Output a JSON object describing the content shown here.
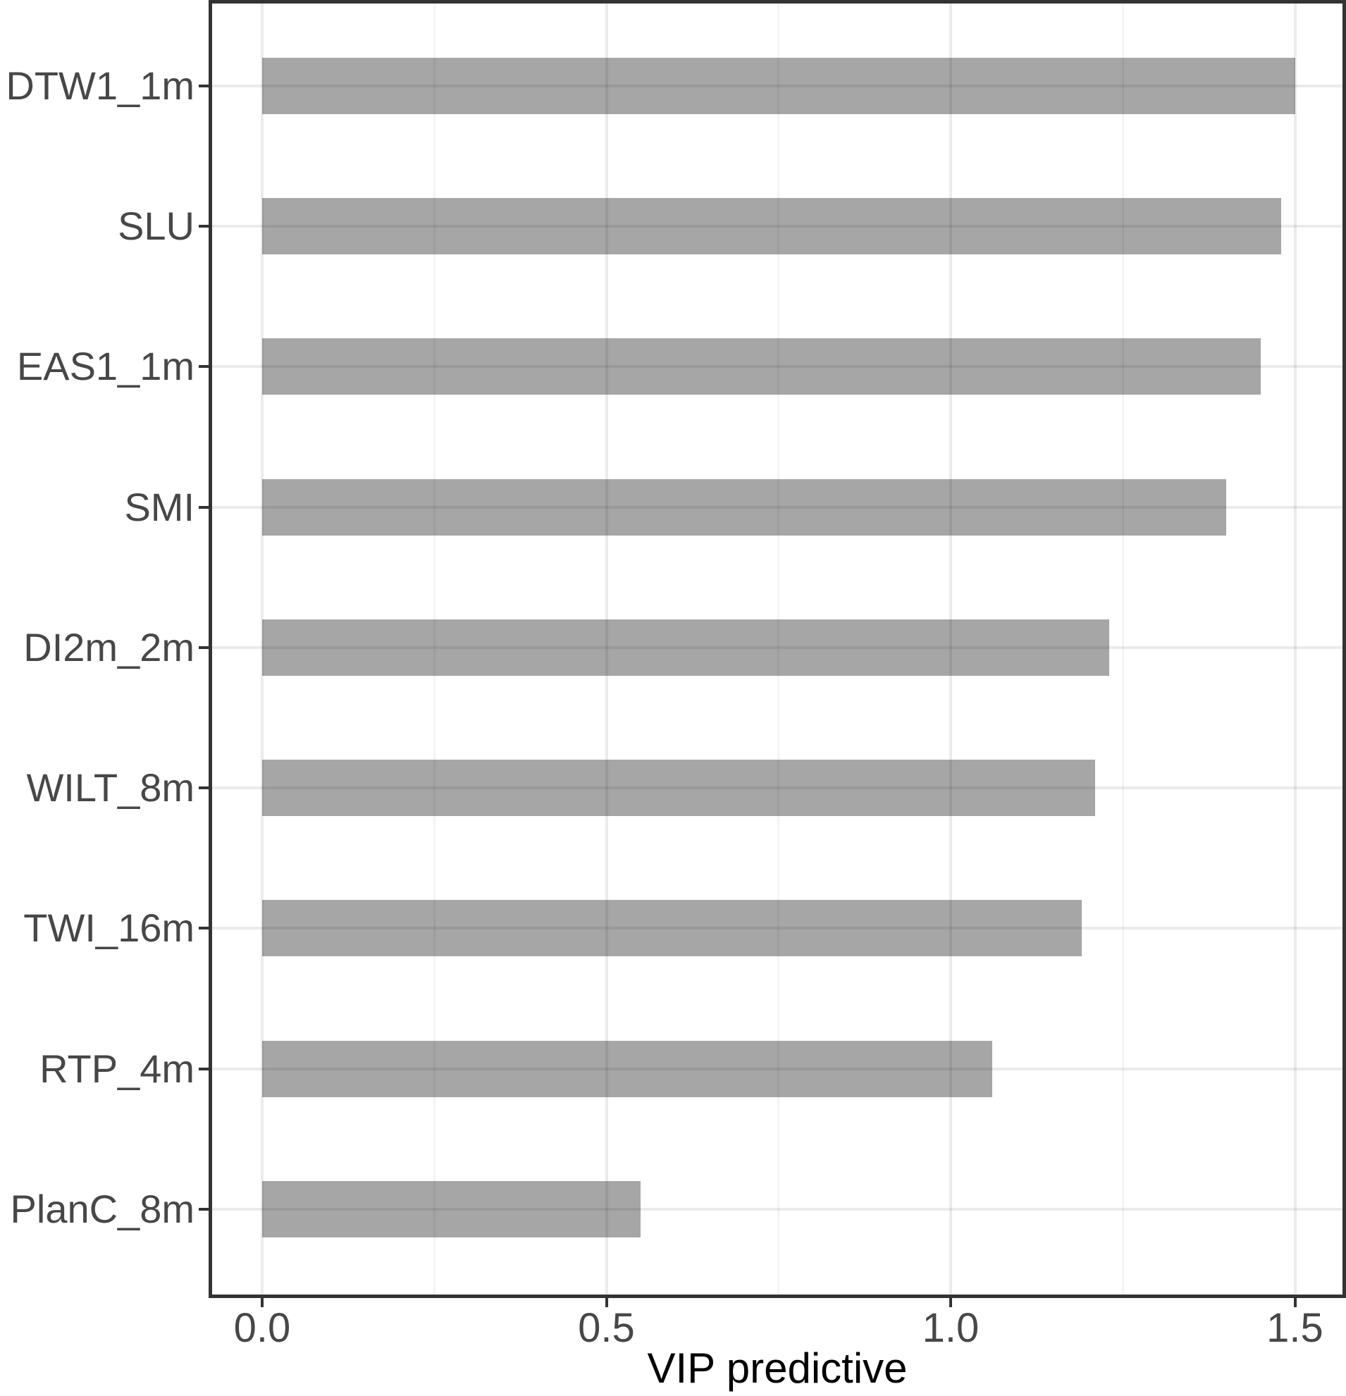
{
  "figure": {
    "kind": "ggplot-style horizontal bar chart",
    "background": "#ffffff"
  },
  "chart_data": {
    "type": "bar",
    "orientation": "horizontal",
    "title": "",
    "xlabel": "VIP predictive",
    "ylabel": "",
    "categories": [
      "DTW1_1m",
      "SLU",
      "EAS1_1m",
      "SMI",
      "DI2m_2m",
      "WILT_8m",
      "TWI_16m",
      "RTP_4m",
      "PlanC_8m"
    ],
    "values": [
      1.5,
      1.48,
      1.45,
      1.4,
      1.23,
      1.21,
      1.19,
      1.06,
      0.55
    ],
    "xlim": [
      -0.075,
      1.575
    ],
    "x_major_ticks": [
      0.0,
      0.5,
      1.0,
      1.5
    ],
    "x_tick_labels": [
      "0.0",
      "0.5",
      "1.0",
      "1.5"
    ],
    "x_minor_ticks": [
      0.25,
      0.75,
      1.25
    ],
    "grid": "vertical major+minor, horizontal major at each category; drawn light gray, visible through translucent bars",
    "legend_position": "none",
    "colors": {
      "bar": "#a6a6a6",
      "panel_border": "#333333",
      "tick_mark": "#333333",
      "tick_text": "#474747",
      "axis_title": "#000000",
      "grid_major": "#ebebeb",
      "grid_minor": "#f2f2f2",
      "background": "#ffffff"
    }
  }
}
